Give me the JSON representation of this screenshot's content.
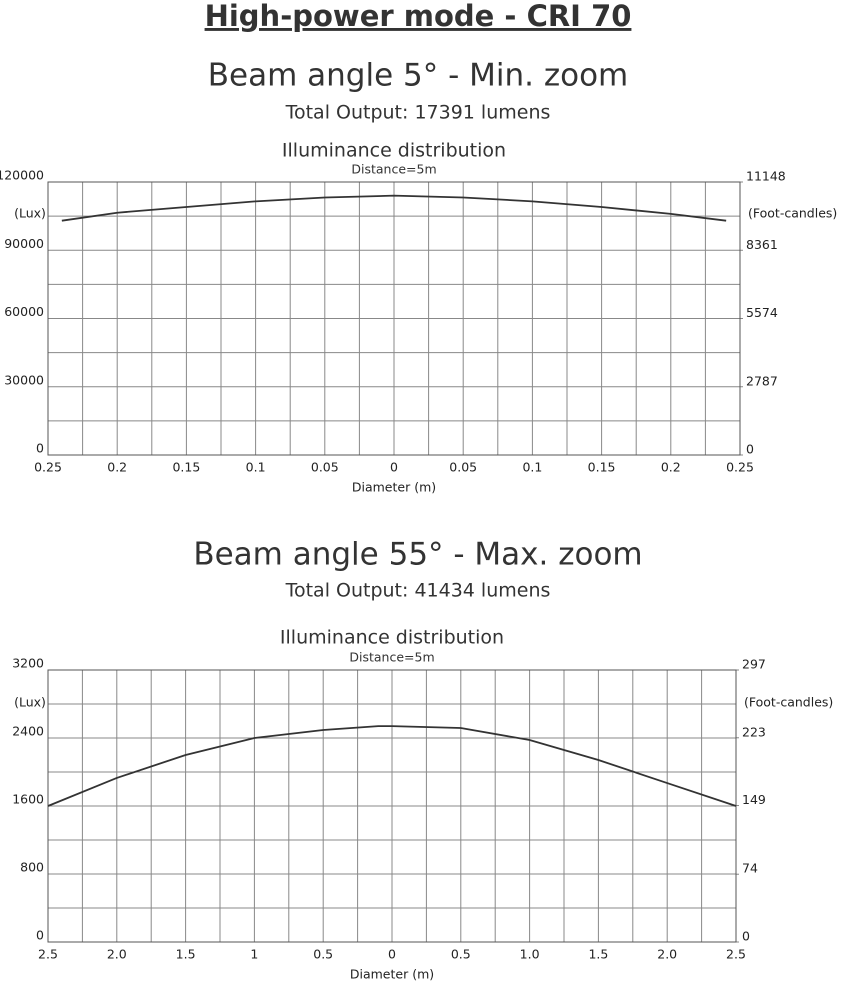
{
  "title": "High-power mode - CRI 70",
  "chart_data": [
    {
      "type": "line",
      "heading": "Beam angle 5° -  Min. zoom",
      "output": "Total Output: 17391 lumens",
      "title": "Illuminance distribution",
      "subtitle": "Distance=5m",
      "ylabel": "(Lux)",
      "y2label": "(Foot-candles)",
      "xlabel": "Diameter (m)",
      "x": [
        -0.24,
        -0.2,
        -0.15,
        -0.1,
        -0.05,
        0,
        0.05,
        0.1,
        0.15,
        0.2,
        0.24
      ],
      "values": [
        103000,
        106500,
        109000,
        111500,
        113200,
        114000,
        113200,
        111500,
        109000,
        106000,
        103000
      ],
      "color": "#333333",
      "xlim": [
        -0.25,
        0.25
      ],
      "xticks": [
        {
          "value": -0.25,
          "label": "0.25"
        },
        {
          "value": -0.2,
          "label": "0.2"
        },
        {
          "value": -0.15,
          "label": "0.15"
        },
        {
          "value": -0.1,
          "label": "0.1"
        },
        {
          "value": -0.05,
          "label": "0.05"
        },
        0,
        0.05,
        0.1,
        0.15,
        0.2,
        0.25
      ],
      "ylim": [
        0,
        120000
      ],
      "yticks": [
        0,
        30000,
        60000,
        90000,
        120000
      ],
      "y2lim": [
        0,
        11148
      ],
      "y2ticks": [
        0,
        2787,
        5574,
        8361,
        11148
      ],
      "grid": true
    },
    {
      "type": "line",
      "heading": "Beam angle 55° - Max. zoom",
      "output": "Total Output: 41434 lumens",
      "title": "Illuminance distribution",
      "subtitle": "Distance=5m",
      "ylabel": "(Lux)",
      "y2label": "(Foot-candles)",
      "xlabel": "Diameter (m)",
      "x": [
        -2.5,
        -2,
        -1.5,
        -1,
        -0.5,
        -0.1,
        0,
        0.5,
        1,
        1.5,
        2,
        2.5
      ],
      "values": [
        1600,
        1930,
        2200,
        2400,
        2494,
        2540,
        2540,
        2518,
        2376,
        2141,
        1870,
        1600
      ],
      "color": "#333333",
      "xlim": [
        -2.5,
        2.5
      ],
      "xticks": [
        {
          "value": -2.5,
          "label": "2.5"
        },
        {
          "value": -2,
          "label": "2.0"
        },
        {
          "value": -1.5,
          "label": "1.5"
        },
        {
          "value": -1,
          "label": "1"
        },
        {
          "value": -0.5,
          "label": "0.5"
        },
        0,
        0.5,
        {
          "value": 1,
          "label": "1.0"
        },
        1.5,
        {
          "value": 2,
          "label": "2.0"
        },
        2.5
      ],
      "ylim": [
        0,
        3200
      ],
      "yticks": [
        0,
        800,
        1600,
        2400,
        3200
      ],
      "y2lim": [
        0,
        297
      ],
      "y2ticks": [
        0,
        74,
        149,
        223,
        297
      ],
      "grid": true
    }
  ]
}
